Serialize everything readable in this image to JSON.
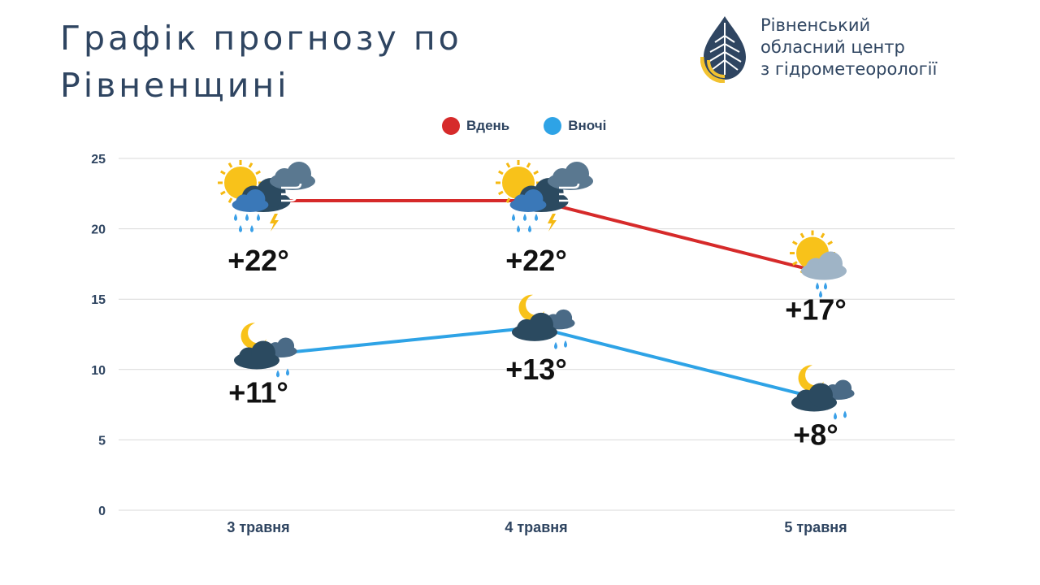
{
  "title": {
    "line1": "Графік прогнозу по",
    "line2": "Рівненщині"
  },
  "logo": {
    "line1": "Рівненський",
    "line2": "обласний центр",
    "line3": "з гідрометеорології",
    "icon": "water-drop-leaf-icon"
  },
  "legend": {
    "day_label": "Вдень",
    "night_label": "Вночі"
  },
  "colors": {
    "day": "#d62a2a",
    "night": "#2ea3e6",
    "text": "#2f4561",
    "grid": "#d9d9d9"
  },
  "chart_data": {
    "type": "line",
    "categories": [
      "3 травня",
      "4 травня",
      "5 травня"
    ],
    "series": [
      {
        "name": "Вдень",
        "values": [
          22,
          22,
          17
        ],
        "labels": [
          "+22°",
          "+22°",
          "+17°"
        ],
        "icons": [
          "sun-storm-wind-icon",
          "sun-storm-wind-icon",
          "sun-cloud-rain-icon"
        ]
      },
      {
        "name": "Вночі",
        "values": [
          11,
          13,
          8
        ],
        "labels": [
          "+11°",
          "+13°",
          "+8°"
        ],
        "icons": [
          "moon-cloud-rain-icon",
          "moon-cloud-rain-icon",
          "moon-cloud-rain-icon"
        ]
      }
    ],
    "yticks": [
      0,
      5,
      10,
      15,
      20,
      25
    ],
    "ylim": [
      0,
      25
    ],
    "grid": true,
    "legend_position": "top-center"
  }
}
